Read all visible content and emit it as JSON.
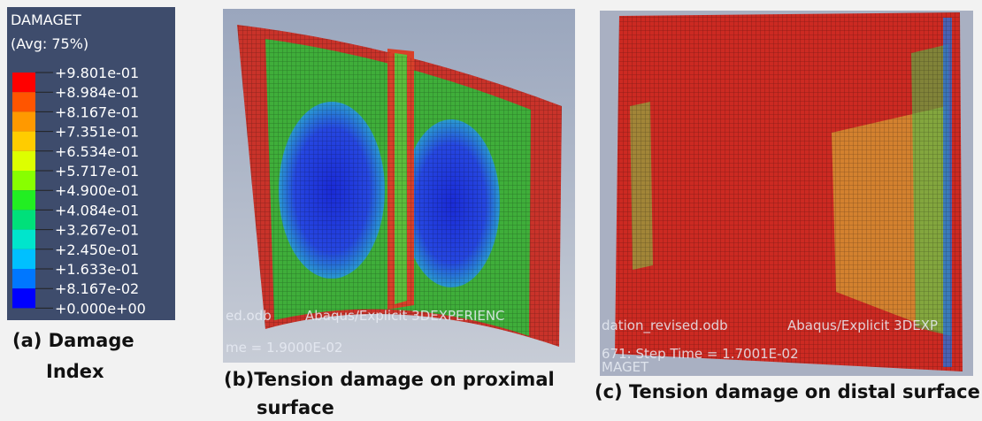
{
  "legend": {
    "title": "DAMAGET",
    "subtitle": "(Avg: 75%)",
    "labels": [
      "+9.801e-01",
      "+8.984e-01",
      "+8.167e-01",
      "+7.351e-01",
      "+6.534e-01",
      "+5.717e-01",
      "+4.900e-01",
      "+4.084e-01",
      "+3.267e-01",
      "+2.450e-01",
      "+1.633e-01",
      "+8.167e-02",
      "+0.000e+00"
    ]
  },
  "panels": [
    {
      "caption": [
        "(a) Damage",
        "Index"
      ]
    },
    {
      "caption": [
        "(b)Tension damage on proximal",
        "surface"
      ],
      "overlay": [
        "ed.odb",
        "Abaqus/Explicit 3DEXPERIENC",
        "me =  1.9000E-02"
      ]
    },
    {
      "caption": [
        "(c) Tension damage on distal surface"
      ],
      "overlay": [
        "dation_revised.odb",
        "Abaqus/Explicit 3DEXP",
        "671: Step Time =  1.7001E-02",
        "MAGET"
      ]
    }
  ]
}
